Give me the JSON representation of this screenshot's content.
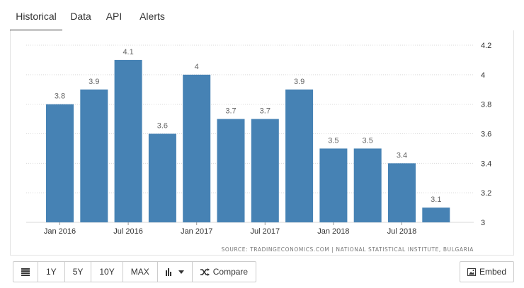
{
  "tabs": [
    {
      "label": "Historical",
      "active": true
    },
    {
      "label": "Data",
      "active": false
    },
    {
      "label": "API",
      "active": false
    },
    {
      "label": "Alerts",
      "active": false
    }
  ],
  "source": "SOURCE: TRADINGECONOMICS.COM | NATIONAL STATISTICAL INSTITUTE, BULGARIA",
  "toolbar": {
    "icon_table": "table-icon",
    "ranges": [
      "1Y",
      "5Y",
      "10Y",
      "MAX"
    ],
    "chart_type_icon": "bar-chart-icon",
    "compare_label": "Compare",
    "compare_icon": "shuffle-icon",
    "embed_label": "Embed",
    "embed_icon": "image-icon"
  },
  "colors": {
    "bar": "#4682b4",
    "grid": "#d9d9d9",
    "label": "#666666"
  },
  "chart_data": {
    "type": "bar",
    "categories": [
      "Jan 2016",
      "Apr 2016",
      "Jul 2016",
      "Oct 2016",
      "Jan 2017",
      "Apr 2017",
      "Jul 2017",
      "Oct 2017",
      "Jan 2018",
      "Apr 2018",
      "Jul 2018",
      "Oct 2018"
    ],
    "values": [
      3.8,
      3.9,
      4.1,
      3.6,
      4.0,
      3.7,
      3.7,
      3.9,
      3.5,
      3.5,
      3.4,
      3.1
    ],
    "value_labels": [
      "3.8",
      "3.9",
      "4.1",
      "3.6",
      "4",
      "3.7",
      "3.7",
      "3.9",
      "3.5",
      "3.5",
      "3.4",
      "3.1"
    ],
    "x_tick_labels": [
      {
        "index": 0,
        "label": "Jan 2016"
      },
      {
        "index": 2,
        "label": "Jul 2016"
      },
      {
        "index": 4,
        "label": "Jan 2017"
      },
      {
        "index": 6,
        "label": "Jul 2017"
      },
      {
        "index": 8,
        "label": "Jan 2018"
      },
      {
        "index": 10,
        "label": "Jul 2018"
      }
    ],
    "y_ticks": [
      3,
      3.2,
      3.4,
      3.6,
      3.8,
      4,
      4.2
    ],
    "y_tick_labels": [
      "3",
      "3.2",
      "3.4",
      "3.6",
      "3.8",
      "4",
      "4.2"
    ],
    "ylim": [
      3,
      4.2
    ],
    "y_axis_position": "right",
    "grid": true,
    "title": "",
    "xlabel": "",
    "ylabel": ""
  }
}
